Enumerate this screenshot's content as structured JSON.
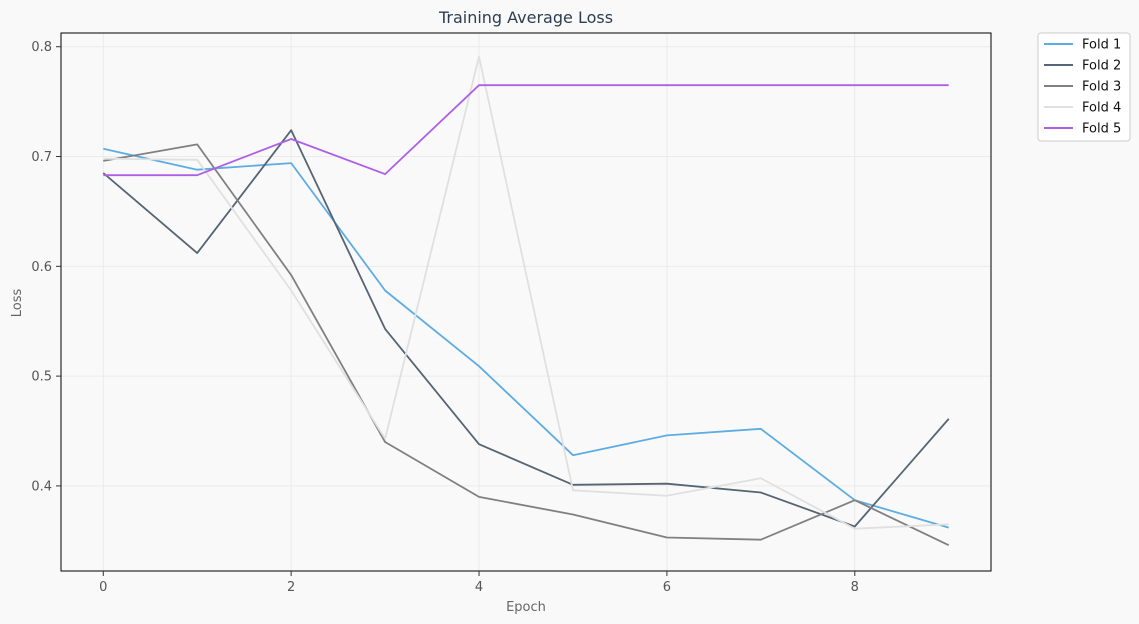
{
  "chart_data": {
    "type": "line",
    "title": "Training Average Loss",
    "xlabel": "Epoch",
    "ylabel": "Loss",
    "x": [
      0,
      1,
      2,
      3,
      4,
      5,
      6,
      7,
      8,
      9
    ],
    "xlim": [
      -0.45,
      9.45
    ],
    "ylim": [
      0.3225,
      0.8125
    ],
    "xticks": [
      0,
      2,
      4,
      6,
      8
    ],
    "yticks": [
      0.4,
      0.5,
      0.6,
      0.7,
      0.8
    ],
    "grid": true,
    "legend": "outside-top-right",
    "series": [
      {
        "name": "Fold 1",
        "color": "#5dade2",
        "values": [
          0.707,
          0.688,
          0.694,
          0.578,
          0.509,
          0.428,
          0.446,
          0.452,
          0.387,
          0.362
        ]
      },
      {
        "name": "Fold 2",
        "color": "#566573",
        "values": [
          0.685,
          0.612,
          0.724,
          0.543,
          0.438,
          0.401,
          0.402,
          0.394,
          0.363,
          0.461
        ]
      },
      {
        "name": "Fold 3",
        "color": "#808080",
        "values": [
          0.696,
          0.711,
          0.592,
          0.44,
          0.39,
          0.374,
          0.353,
          0.351,
          0.387,
          0.346
        ]
      },
      {
        "name": "Fold 4",
        "color": "#e0e0e0",
        "values": [
          0.698,
          0.697,
          0.578,
          0.443,
          0.791,
          0.396,
          0.391,
          0.407,
          0.361,
          0.365
        ]
      },
      {
        "name": "Fold 5",
        "color": "#af5fe6",
        "values": [
          0.683,
          0.683,
          0.716,
          0.684,
          0.765,
          0.765,
          0.765,
          0.765,
          0.765,
          0.765
        ]
      }
    ]
  }
}
